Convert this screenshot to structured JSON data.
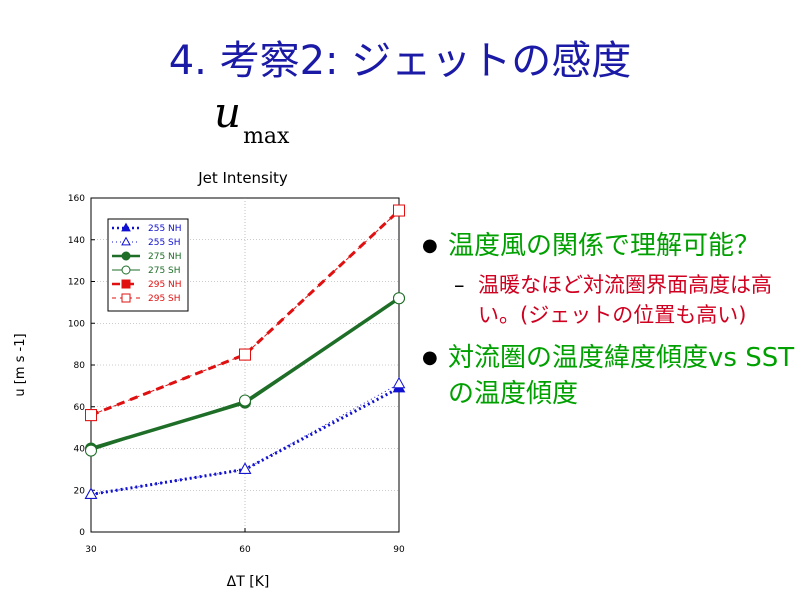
{
  "slide": {
    "title": "4. 考察2: ジェットの感度",
    "math_var": "u",
    "math_sub": "max"
  },
  "bullets": [
    {
      "text": "温度風の関係で理解可能？",
      "sub": "温暖なほど対流圏界面高度は高い。(ジェットの位置も高い)"
    },
    {
      "text": "対流圏の温度緯度傾度vs SSTの温度傾度"
    }
  ],
  "colors": {
    "title": "#1a1aa6",
    "bullet": "#00a000",
    "subbullet": "#d00020",
    "blue": "#1010d0",
    "green": "#1e6e28",
    "red": "#e01010"
  },
  "chart_data": {
    "type": "line",
    "title": "Jet Intensity",
    "xlabel": "ΔT [K]",
    "ylabel": "u [m s -1]",
    "x": [
      30,
      60,
      90
    ],
    "xlim": [
      30,
      90
    ],
    "ylim": [
      0,
      160
    ],
    "xticks": [
      30,
      60,
      90
    ],
    "yticks": [
      0,
      20,
      40,
      60,
      80,
      100,
      120,
      140,
      160
    ],
    "grid": true,
    "legend_position": "top-left",
    "series": [
      {
        "name": "255 NH",
        "values": [
          18,
          30,
          69
        ],
        "color": "#1010d0",
        "line": "dotted",
        "marker": "triangle",
        "filled": true
      },
      {
        "name": "255 SH",
        "values": [
          18,
          30,
          71
        ],
        "color": "#1010d0",
        "line": "dotted-thin",
        "marker": "triangle",
        "filled": false
      },
      {
        "name": "275 NH",
        "values": [
          40,
          62,
          112
        ],
        "color": "#1e6e28",
        "line": "solid",
        "marker": "circle",
        "filled": true
      },
      {
        "name": "275 SH",
        "values": [
          39,
          63,
          112
        ],
        "color": "#1e6e28",
        "line": "solid-thin",
        "marker": "circle",
        "filled": false
      },
      {
        "name": "295 NH",
        "values": [
          56,
          85,
          154
        ],
        "color": "#e01010",
        "line": "dashed",
        "marker": "square",
        "filled": true
      },
      {
        "name": "295 SH",
        "values": [
          56,
          85,
          154
        ],
        "color": "#e01010",
        "line": "dashed-thin",
        "marker": "square",
        "filled": false
      }
    ]
  }
}
